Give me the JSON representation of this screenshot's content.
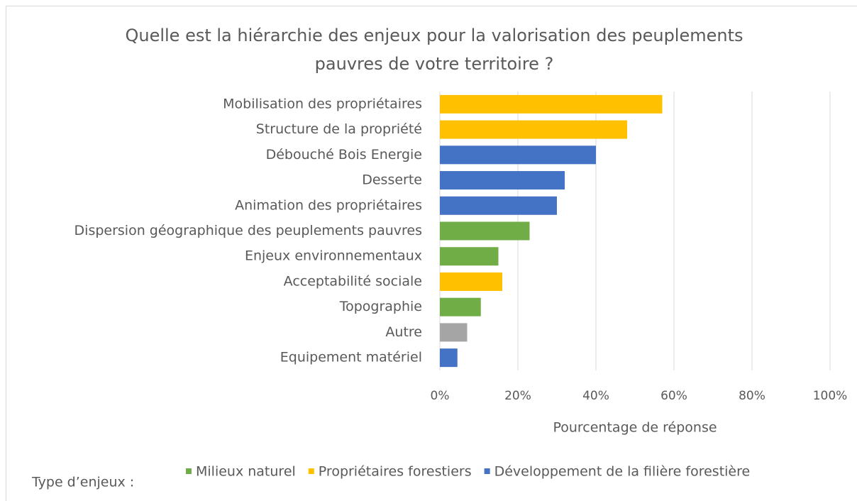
{
  "chart_data": {
    "type": "hbar",
    "title": "Quelle est la hiérarchie des enjeux pour la valorisation des peuplements",
    "subtitle": "pauvres de votre territoire ?",
    "categories": [
      "Mobilisation des propriétaires",
      "Structure de la propriété",
      "Débouché Bois Energie",
      "Desserte",
      "Animation des propriétaires",
      "Dispersion géographique des peuplements pauvres",
      "Enjeux environnementaux",
      "Acceptabilité sociale",
      "Topographie",
      "Autre",
      "Equipement matériel"
    ],
    "values": [
      57,
      48,
      40,
      32,
      30,
      23,
      15,
      16,
      10.5,
      7,
      4.5
    ],
    "colors": [
      "#ffc000",
      "#ffc000",
      "#4472c4",
      "#4472c4",
      "#4472c4",
      "#70ad47",
      "#70ad47",
      "#ffc000",
      "#70ad47",
      "#a5a5a5",
      "#4472c4"
    ],
    "xlim": [
      0,
      100
    ],
    "xticks": [
      {
        "value": 0,
        "label": "0%"
      },
      {
        "value": 20,
        "label": "20%"
      },
      {
        "value": 40,
        "label": "40%"
      },
      {
        "value": 60,
        "label": "60%"
      },
      {
        "value": 80,
        "label": "80%"
      },
      {
        "value": 100,
        "label": "100%"
      }
    ],
    "grid": true,
    "x_label": "Pourcentage de réponse",
    "legend_title": "Type d’enjeux :",
    "legend": [
      {
        "name": "Milieux naturel",
        "color": "#70ad47"
      },
      {
        "name": "Propriétaires forestiers",
        "color": "#ffc000"
      },
      {
        "name": "Développement de la filière forestière",
        "color": "#4472c4"
      }
    ]
  }
}
